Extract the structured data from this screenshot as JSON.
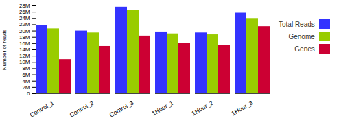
{
  "chart_data": {
    "type": "bar",
    "y_label": "Number of reads",
    "categories": [
      "Control_1",
      "Control_2",
      "Control_3",
      "1Hour_1",
      "1Hour_2",
      "1Hour_3"
    ],
    "series": [
      {
        "name": "Total Reads",
        "color": "#3333ff",
        "values": [
          21700000,
          20000000,
          27600000,
          19700000,
          19400000,
          25700000
        ]
      },
      {
        "name": "Genome",
        "color": "#99cc00",
        "values": [
          20700000,
          19400000,
          26600000,
          19100000,
          18800000,
          24000000
        ]
      },
      {
        "name": "Genes",
        "color": "#cc0033",
        "values": [
          10900000,
          15100000,
          18400000,
          16100000,
          15500000,
          21400000
        ]
      }
    ],
    "ylim": [
      0,
      28000000
    ],
    "yticks": [
      0,
      {
        "value": 2000000,
        "label": "2M"
      },
      {
        "value": 4000000,
        "label": "4M"
      },
      {
        "value": 6000000,
        "label": "6M"
      },
      {
        "value": 8000000,
        "label": "8M"
      },
      {
        "value": 10000000,
        "label": "10M"
      },
      {
        "value": 12000000,
        "label": "12M"
      },
      {
        "value": 14000000,
        "label": "14M"
      },
      {
        "value": 16000000,
        "label": "16M"
      },
      {
        "value": 18000000,
        "label": "18M"
      },
      {
        "value": 20000000,
        "label": "20M"
      },
      {
        "value": 22000000,
        "label": "22M"
      },
      {
        "value": 24000000,
        "label": "24M"
      },
      {
        "value": 26000000,
        "label": "26M"
      },
      {
        "value": 28000000,
        "label": "28M"
      }
    ],
    "legend": "right",
    "grid": false
  }
}
